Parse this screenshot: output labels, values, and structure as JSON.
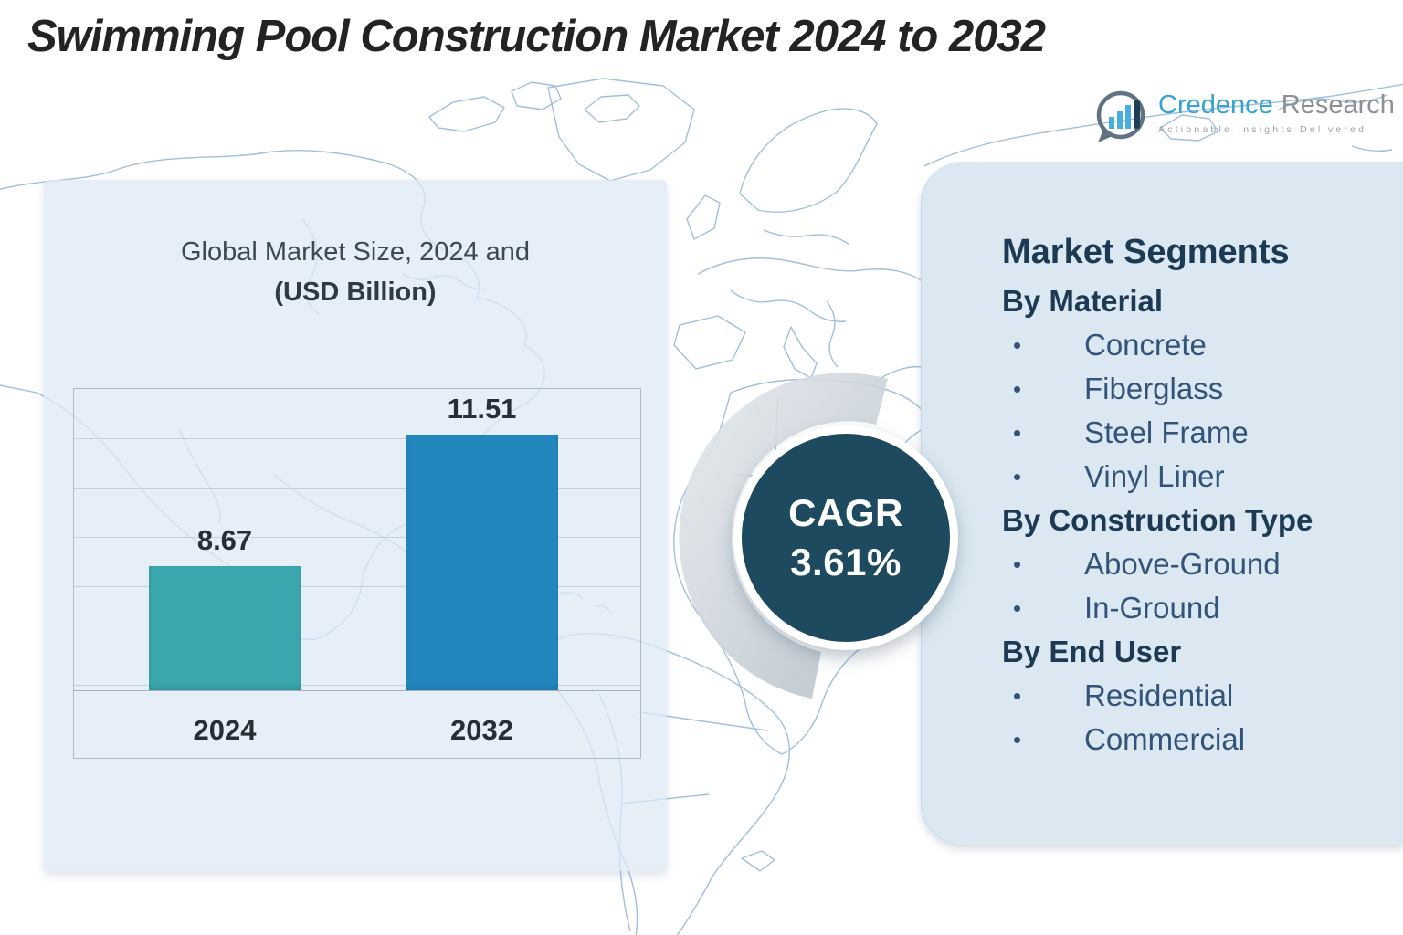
{
  "title": "Swimming Pool Construction Market 2024 to 2032",
  "logo": {
    "brand_primary": "Credence",
    "brand_secondary": "Research",
    "tagline": "Actionable Insights Delivered",
    "icon": "bar-chart-speech-bubble",
    "colors": {
      "brand_primary": "#35a3d3",
      "brand_secondary": "#8b9196",
      "icon_stroke": "#5f7382",
      "icon_bars": "#49aedd",
      "icon_dark_bar": "#1e3e52"
    }
  },
  "chart_data": {
    "type": "bar",
    "title_line1": "Global Market Size, 2024 and",
    "title_line2": "(USD Billion)",
    "categories": [
      "2024",
      "2032"
    ],
    "values": [
      8.67,
      11.51
    ],
    "labels": [
      "8.67",
      "11.51"
    ],
    "bar_colors": [
      "#3aa7ae",
      "#2287bd"
    ],
    "ylim": [
      6,
      12.5
    ],
    "grid": true,
    "legend": "none"
  },
  "cagr_badge": {
    "label": "CAGR",
    "value": "3.61%",
    "bg": "#1d4a5e",
    "text_color": "#ffffff"
  },
  "segments_panel": {
    "title": "Market Segments",
    "bullet": "•",
    "bg": "#dbe8f1",
    "heading_color": "#1c3a54",
    "item_color": "#33547a",
    "groups": [
      {
        "heading": "By Material",
        "items": [
          "Concrete",
          "Fiberglass",
          "Steel Frame",
          "Vinyl Liner"
        ]
      },
      {
        "heading": "By Construction Type",
        "items": [
          "Above-Ground",
          "In-Ground"
        ]
      },
      {
        "heading": "By End User",
        "items": [
          "Residential",
          "Commercial"
        ]
      }
    ]
  },
  "map": {
    "stroke_color": "#8fb4d8"
  }
}
